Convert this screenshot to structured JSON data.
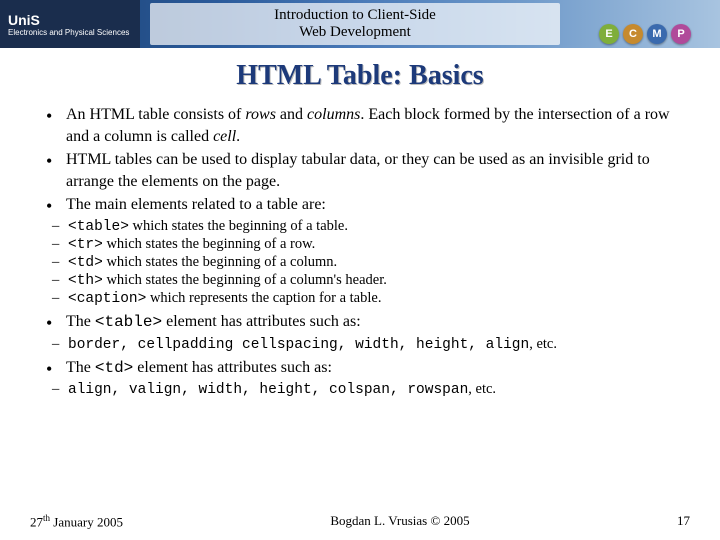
{
  "header": {
    "logo_uni": "UniS",
    "logo_sub": "Electronics and Physical Sciences",
    "course_title_line1": "Introduction to Client-Side",
    "course_title_line2": "Web Development",
    "badges": [
      {
        "letter": "E",
        "bg": "#7fae3a"
      },
      {
        "letter": "C",
        "bg": "#c68a2e"
      },
      {
        "letter": "M",
        "bg": "#3a6aae"
      },
      {
        "letter": "P",
        "bg": "#b04a9a"
      }
    ]
  },
  "slide_title": "HTML Table: Basics",
  "bullets": {
    "b1_pre": "An HTML table consists of ",
    "b1_rows": "rows",
    "b1_and": " and ",
    "b1_cols": "columns",
    "b1_mid": ". Each block formed by the intersection of a row and a column is called ",
    "b1_cell": "cell",
    "b1_end": ".",
    "b2": "HTML tables can be used to display tabular data, or they can be used as an invisible grid to arrange the elements on the page.",
    "b3": "The main elements related to a table are:",
    "s1_tag": "<table>",
    "s1_txt": " which states the beginning of a table.",
    "s2_tag": "<tr>",
    "s2_txt": " which states the beginning of a row.",
    "s3_tag": "<td>",
    "s3_txt": " which states the beginning of a column.",
    "s4_tag": "<th>",
    "s4_txt": " which states the beginning of a column's header.",
    "s5_tag": "<caption>",
    "s5_txt": " which represents the caption for a table.",
    "b4_pre": "The ",
    "b4_tag": "<table>",
    "b4_post": " element has attributes such as:",
    "s6_attrs": "border, cellpadding cellspacing, width, height, align",
    "s6_etc": ", etc.",
    "b5_pre": "The ",
    "b5_tag": "<td>",
    "b5_post": " element has attributes such as:",
    "s7_attrs": "align, valign, width, height, colspan, rowspan",
    "s7_etc": ", etc."
  },
  "footer": {
    "date_day": "27",
    "date_sup": "th",
    "date_rest": " January 2005",
    "author": "Bogdan L. Vrusias © 2005",
    "page": "17"
  }
}
